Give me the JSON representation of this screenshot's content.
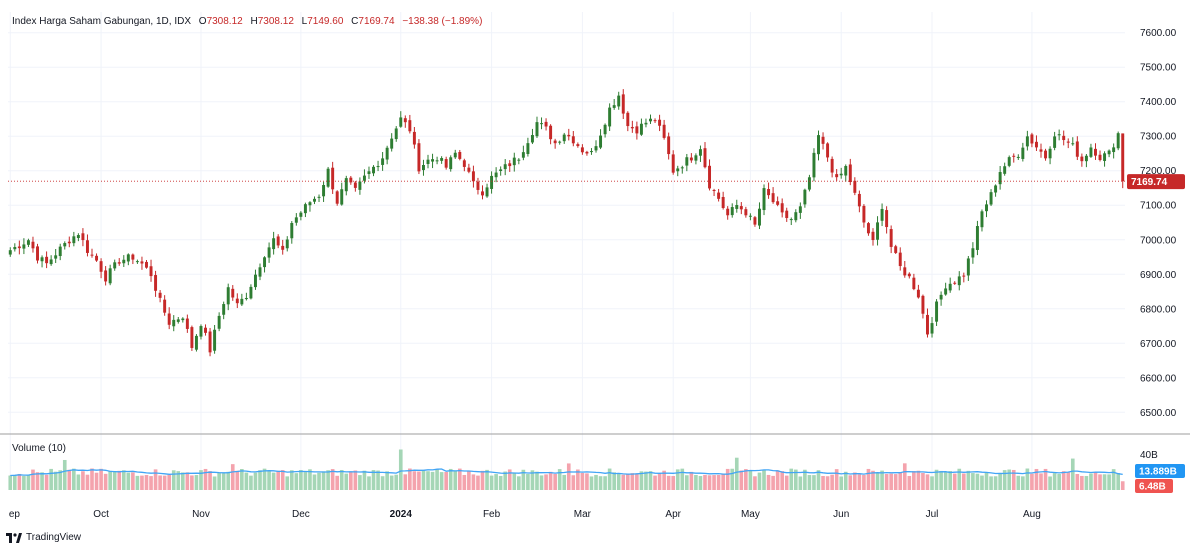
{
  "header": {
    "title": "Index Harga Saham Gabungan, 1D, IDX",
    "open_label": "O",
    "open": "7308.12",
    "high_label": "H",
    "high": "7308.12",
    "low_label": "L",
    "low": "7149.60",
    "close_label": "C",
    "close": "7169.74",
    "change": "−138.38 (−1.89%)"
  },
  "volume_panel": {
    "title": "Volume (10)"
  },
  "brand": {
    "name": "TradingView"
  },
  "colors": {
    "up": "#2e7d32",
    "down": "#c62828",
    "vol_up": "#a5d6b6",
    "vol_down": "#f4a3ad",
    "vol_ma": "#42a5f5",
    "price_tag": "#c62828",
    "vol_tag": "#2196f3",
    "vol_last_tag": "#ef5350",
    "grid": "#f0f3fa",
    "axis_line": "#9e9e9e"
  },
  "chart_data": {
    "type": "candlestick",
    "title": "Index Harga Saham Gabungan, 1D, IDX",
    "price_axis": {
      "ylim": [
        6440,
        7660
      ],
      "ticks": [
        "7600.00",
        "7500.00",
        "7400.00",
        "7300.00",
        "7200.00",
        "7100.00",
        "7000.00",
        "6900.00",
        "6800.00",
        "6700.00",
        "6600.00",
        "6500.00"
      ],
      "last_price": "7169.74"
    },
    "volume_axis": {
      "top_label": "40B",
      "ma_label": "13.889B",
      "last_label": "6.48B"
    },
    "x_labels": [
      "ep",
      "Oct",
      "Nov",
      "Dec",
      "2024",
      "Feb",
      "Mar",
      "Apr",
      "May",
      "Jun",
      "Jul",
      "Aug"
    ],
    "x_label_days": [
      0,
      20,
      42,
      64,
      86,
      106,
      126,
      146,
      163,
      183,
      203,
      225
    ],
    "anchors": [
      [
        0,
        6970
      ],
      [
        4,
        7000
      ],
      [
        6,
        6950
      ],
      [
        8,
        6930
      ],
      [
        10,
        6960
      ],
      [
        13,
        7000
      ],
      [
        15,
        7020
      ],
      [
        17,
        6970
      ],
      [
        19,
        6940
      ],
      [
        21,
        6890
      ],
      [
        24,
        6940
      ],
      [
        27,
        6950
      ],
      [
        29,
        6930
      ],
      [
        31,
        6900
      ],
      [
        33,
        6820
      ],
      [
        35,
        6760
      ],
      [
        38,
        6780
      ],
      [
        40,
        6690
      ],
      [
        42,
        6760
      ],
      [
        44,
        6680
      ],
      [
        46,
        6780
      ],
      [
        48,
        6860
      ],
      [
        50,
        6810
      ],
      [
        52,
        6840
      ],
      [
        54,
        6900
      ],
      [
        56,
        6960
      ],
      [
        58,
        7000
      ],
      [
        60,
        6960
      ],
      [
        62,
        7050
      ],
      [
        64,
        7080
      ],
      [
        66,
        7110
      ],
      [
        68,
        7130
      ],
      [
        70,
        7200
      ],
      [
        72,
        7110
      ],
      [
        74,
        7170
      ],
      [
        76,
        7140
      ],
      [
        78,
        7180
      ],
      [
        80,
        7210
      ],
      [
        82,
        7240
      ],
      [
        84,
        7300
      ],
      [
        86,
        7350
      ],
      [
        88,
        7320
      ],
      [
        90,
        7210
      ],
      [
        92,
        7230
      ],
      [
        94,
        7240
      ],
      [
        96,
        7210
      ],
      [
        98,
        7250
      ],
      [
        100,
        7220
      ],
      [
        102,
        7160
      ],
      [
        104,
        7140
      ],
      [
        106,
        7180
      ],
      [
        108,
        7200
      ],
      [
        110,
        7220
      ],
      [
        112,
        7240
      ],
      [
        114,
        7290
      ],
      [
        116,
        7340
      ],
      [
        118,
        7320
      ],
      [
        120,
        7280
      ],
      [
        122,
        7310
      ],
      [
        124,
        7290
      ],
      [
        126,
        7260
      ],
      [
        128,
        7250
      ],
      [
        130,
        7310
      ],
      [
        132,
        7380
      ],
      [
        134,
        7420
      ],
      [
        136,
        7330
      ],
      [
        138,
        7320
      ],
      [
        140,
        7340
      ],
      [
        142,
        7350
      ],
      [
        144,
        7290
      ],
      [
        146,
        7200
      ],
      [
        148,
        7220
      ],
      [
        150,
        7240
      ],
      [
        152,
        7270
      ],
      [
        154,
        7160
      ],
      [
        156,
        7120
      ],
      [
        158,
        7070
      ],
      [
        160,
        7100
      ],
      [
        162,
        7080
      ],
      [
        164,
        7040
      ],
      [
        166,
        7140
      ],
      [
        168,
        7110
      ],
      [
        170,
        7070
      ],
      [
        172,
        7060
      ],
      [
        174,
        7090
      ],
      [
        176,
        7180
      ],
      [
        178,
        7300
      ],
      [
        180,
        7240
      ],
      [
        182,
        7170
      ],
      [
        184,
        7210
      ],
      [
        186,
        7130
      ],
      [
        188,
        7050
      ],
      [
        190,
        6990
      ],
      [
        192,
        7100
      ],
      [
        194,
        6980
      ],
      [
        196,
        6920
      ],
      [
        198,
        6890
      ],
      [
        200,
        6840
      ],
      [
        202,
        6730
      ],
      [
        204,
        6810
      ],
      [
        206,
        6870
      ],
      [
        208,
        6880
      ],
      [
        210,
        6900
      ],
      [
        212,
        6980
      ],
      [
        214,
        7080
      ],
      [
        216,
        7130
      ],
      [
        218,
        7200
      ],
      [
        220,
        7230
      ],
      [
        222,
        7250
      ],
      [
        224,
        7300
      ],
      [
        226,
        7270
      ],
      [
        228,
        7240
      ],
      [
        230,
        7310
      ],
      [
        232,
        7290
      ],
      [
        234,
        7270
      ],
      [
        236,
        7230
      ],
      [
        238,
        7270
      ],
      [
        240,
        7240
      ],
      [
        242,
        7250
      ],
      [
        244,
        7308
      ]
    ],
    "last_candle": {
      "open": 7308.12,
      "high": 7308.12,
      "low": 7149.6,
      "close": 7169.74
    },
    "total_days": 246
  }
}
